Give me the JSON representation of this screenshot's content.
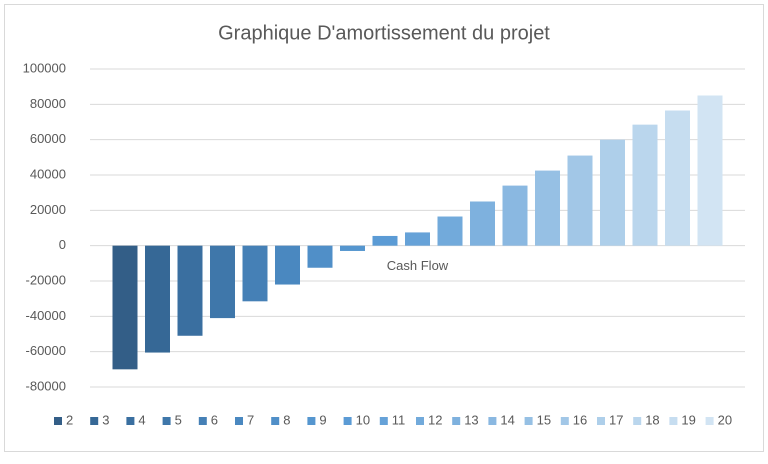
{
  "chart_data": {
    "type": "bar",
    "title": "Graphique D'amortissement du projet",
    "categories": [
      "Cash Flow"
    ],
    "ylim": [
      -80000,
      100000
    ],
    "yticks": [
      -80000,
      -60000,
      -40000,
      -20000,
      0,
      20000,
      40000,
      60000,
      80000,
      100000
    ],
    "grid": true,
    "legend": "bottom",
    "series": [
      {
        "name": "2",
        "color": "#335e87",
        "values": [
          -70000
        ]
      },
      {
        "name": "3",
        "color": "#366896",
        "values": [
          -60500
        ]
      },
      {
        "name": "4",
        "color": "#3a6fa0",
        "values": [
          -51000
        ]
      },
      {
        "name": "5",
        "color": "#3f77aa",
        "values": [
          -41000
        ]
      },
      {
        "name": "6",
        "color": "#4580b6",
        "values": [
          -31500
        ]
      },
      {
        "name": "7",
        "color": "#4a88c0",
        "values": [
          -22000
        ]
      },
      {
        "name": "8",
        "color": "#508fc8",
        "values": [
          -12500
        ]
      },
      {
        "name": "9",
        "color": "#5596cf",
        "values": [
          -3000
        ]
      },
      {
        "name": "10",
        "color": "#5b9bd5",
        "values": [
          5500
        ]
      },
      {
        "name": "11",
        "color": "#66a2d8",
        "values": [
          7500
        ]
      },
      {
        "name": "12",
        "color": "#72aadb",
        "values": [
          16500
        ]
      },
      {
        "name": "13",
        "color": "#7eb1de",
        "values": [
          25000
        ]
      },
      {
        "name": "14",
        "color": "#8ab8e1",
        "values": [
          34000
        ]
      },
      {
        "name": "15",
        "color": "#96c0e4",
        "values": [
          42500
        ]
      },
      {
        "name": "16",
        "color": "#a2c7e7",
        "values": [
          51000
        ]
      },
      {
        "name": "17",
        "color": "#aecfea",
        "values": [
          60000
        ]
      },
      {
        "name": "18",
        "color": "#bad6ed",
        "values": [
          68500
        ]
      },
      {
        "name": "19",
        "color": "#c6ddf0",
        "values": [
          76500
        ]
      },
      {
        "name": "20",
        "color": "#d2e4f3",
        "values": [
          85000
        ]
      }
    ]
  }
}
